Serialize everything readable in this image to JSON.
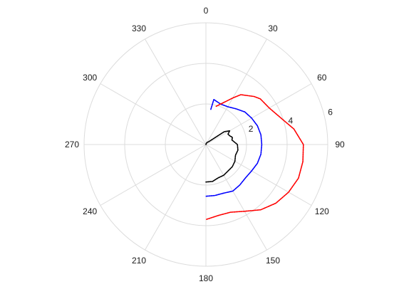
{
  "chart_data": {
    "type": "polar-line",
    "title": "",
    "theta_direction": "clockwise",
    "theta_zero": "top",
    "theta_ticks": [
      "0",
      "30",
      "60",
      "90",
      "120",
      "150",
      "180",
      "210",
      "240",
      "270",
      "300",
      "330"
    ],
    "r_ticks": [
      "2",
      "4",
      "6"
    ],
    "r_lim": [
      0,
      6
    ],
    "grid": true,
    "series": [
      {
        "color": "#000000",
        "points": [
          [
            0,
            0.0
          ],
          [
            15,
            0.05
          ],
          [
            30,
            0.12
          ],
          [
            45,
            0.2
          ],
          [
            55,
            1.1
          ],
          [
            60,
            1.35
          ],
          [
            65,
            1.2
          ],
          [
            70,
            1.25
          ],
          [
            75,
            1.35
          ],
          [
            80,
            1.3
          ],
          [
            90,
            1.55
          ],
          [
            100,
            1.6
          ],
          [
            110,
            1.55
          ],
          [
            120,
            1.65
          ],
          [
            130,
            1.7
          ],
          [
            140,
            1.7
          ],
          [
            150,
            1.75
          ],
          [
            160,
            1.75
          ],
          [
            170,
            1.85
          ],
          [
            180,
            1.85
          ]
        ]
      },
      {
        "color": "#0000ff",
        "points": [
          [
            8,
            1.75
          ],
          [
            10,
            2.25
          ],
          [
            20,
            2.12
          ],
          [
            30,
            2.15
          ],
          [
            40,
            2.3
          ],
          [
            50,
            2.5
          ],
          [
            60,
            2.6
          ],
          [
            70,
            2.7
          ],
          [
            80,
            2.75
          ],
          [
            90,
            2.75
          ],
          [
            100,
            2.75
          ],
          [
            110,
            2.7
          ],
          [
            120,
            2.6
          ],
          [
            130,
            2.55
          ],
          [
            140,
            2.6
          ],
          [
            150,
            2.65
          ],
          [
            160,
            2.55
          ],
          [
            170,
            2.55
          ],
          [
            180,
            2.55
          ]
        ]
      },
      {
        "color": "#ff0000",
        "points": [
          [
            15,
            1.95
          ],
          [
            30,
            2.65
          ],
          [
            35,
            3.0
          ],
          [
            45,
            3.35
          ],
          [
            50,
            3.5
          ],
          [
            60,
            3.6
          ],
          [
            70,
            3.9
          ],
          [
            80,
            4.4
          ],
          [
            90,
            4.8
          ],
          [
            100,
            4.85
          ],
          [
            110,
            4.85
          ],
          [
            120,
            4.7
          ],
          [
            130,
            4.5
          ],
          [
            140,
            4.2
          ],
          [
            150,
            3.8
          ],
          [
            160,
            3.55
          ],
          [
            170,
            3.55
          ],
          [
            180,
            3.7
          ]
        ]
      }
    ]
  }
}
